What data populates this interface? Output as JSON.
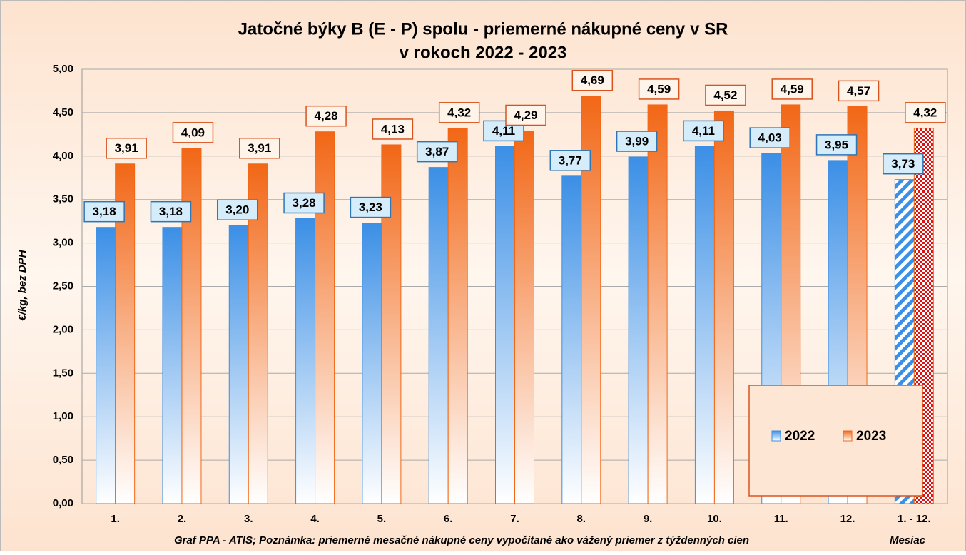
{
  "chart_data": {
    "type": "bar",
    "title": "Jatočné býky B (E - P) spolu - priemerné nákupné ceny v SR",
    "subtitle": "v rokoch 2022 - 2023",
    "y_label": "€/kg, bez DPH",
    "x_label": "Mesiac",
    "note": "Graf PPA - ATIS; Poznámka: priemerné mesačné nákupné ceny vypočítané ako vážený priemer z týždenných cien",
    "categories": [
      "1.",
      "2.",
      "3.",
      "4.",
      "5.",
      "6.",
      "7.",
      "8.",
      "9.",
      "10.",
      "11.",
      "12.",
      "1. - 12."
    ],
    "series": [
      {
        "name": "2022",
        "color": "#3b8fe6",
        "values": [
          3.18,
          3.18,
          3.2,
          3.28,
          3.23,
          3.87,
          4.11,
          3.77,
          3.99,
          4.11,
          4.03,
          3.95,
          3.73
        ],
        "value_labels": [
          "3,18",
          "3,18",
          "3,20",
          "3,28",
          "3,23",
          "3,87",
          "4,11",
          "3,77",
          "3,99",
          "4,11",
          "4,03",
          "3,95",
          "3,73"
        ]
      },
      {
        "name": "2023",
        "color": "#f26716",
        "values": [
          3.91,
          4.09,
          3.91,
          4.28,
          4.13,
          4.32,
          4.29,
          4.69,
          4.59,
          4.52,
          4.59,
          4.57,
          4.32
        ],
        "value_labels": [
          "3,91",
          "4,09",
          "3,91",
          "4,28",
          "4,13",
          "4,32",
          "4,29",
          "4,69",
          "4,59",
          "4,52",
          "4,59",
          "4,57",
          "4,32"
        ]
      }
    ],
    "ylim": [
      0,
      5
    ],
    "yticks": [
      {
        "value": 0,
        "label": "0,00"
      },
      {
        "value": 0.5,
        "label": "0,50"
      },
      {
        "value": 1,
        "label": "1,00"
      },
      {
        "value": 1.5,
        "label": "1,50"
      },
      {
        "value": 2,
        "label": "2,00"
      },
      {
        "value": 2.5,
        "label": "2,50"
      },
      {
        "value": 3,
        "label": "3,00"
      },
      {
        "value": 3.5,
        "label": "3,50"
      },
      {
        "value": 4,
        "label": "4,00"
      },
      {
        "value": 4.5,
        "label": "4,50"
      },
      {
        "value": 5,
        "label": "5,00"
      }
    ],
    "grid": true,
    "legend": "lower right"
  }
}
